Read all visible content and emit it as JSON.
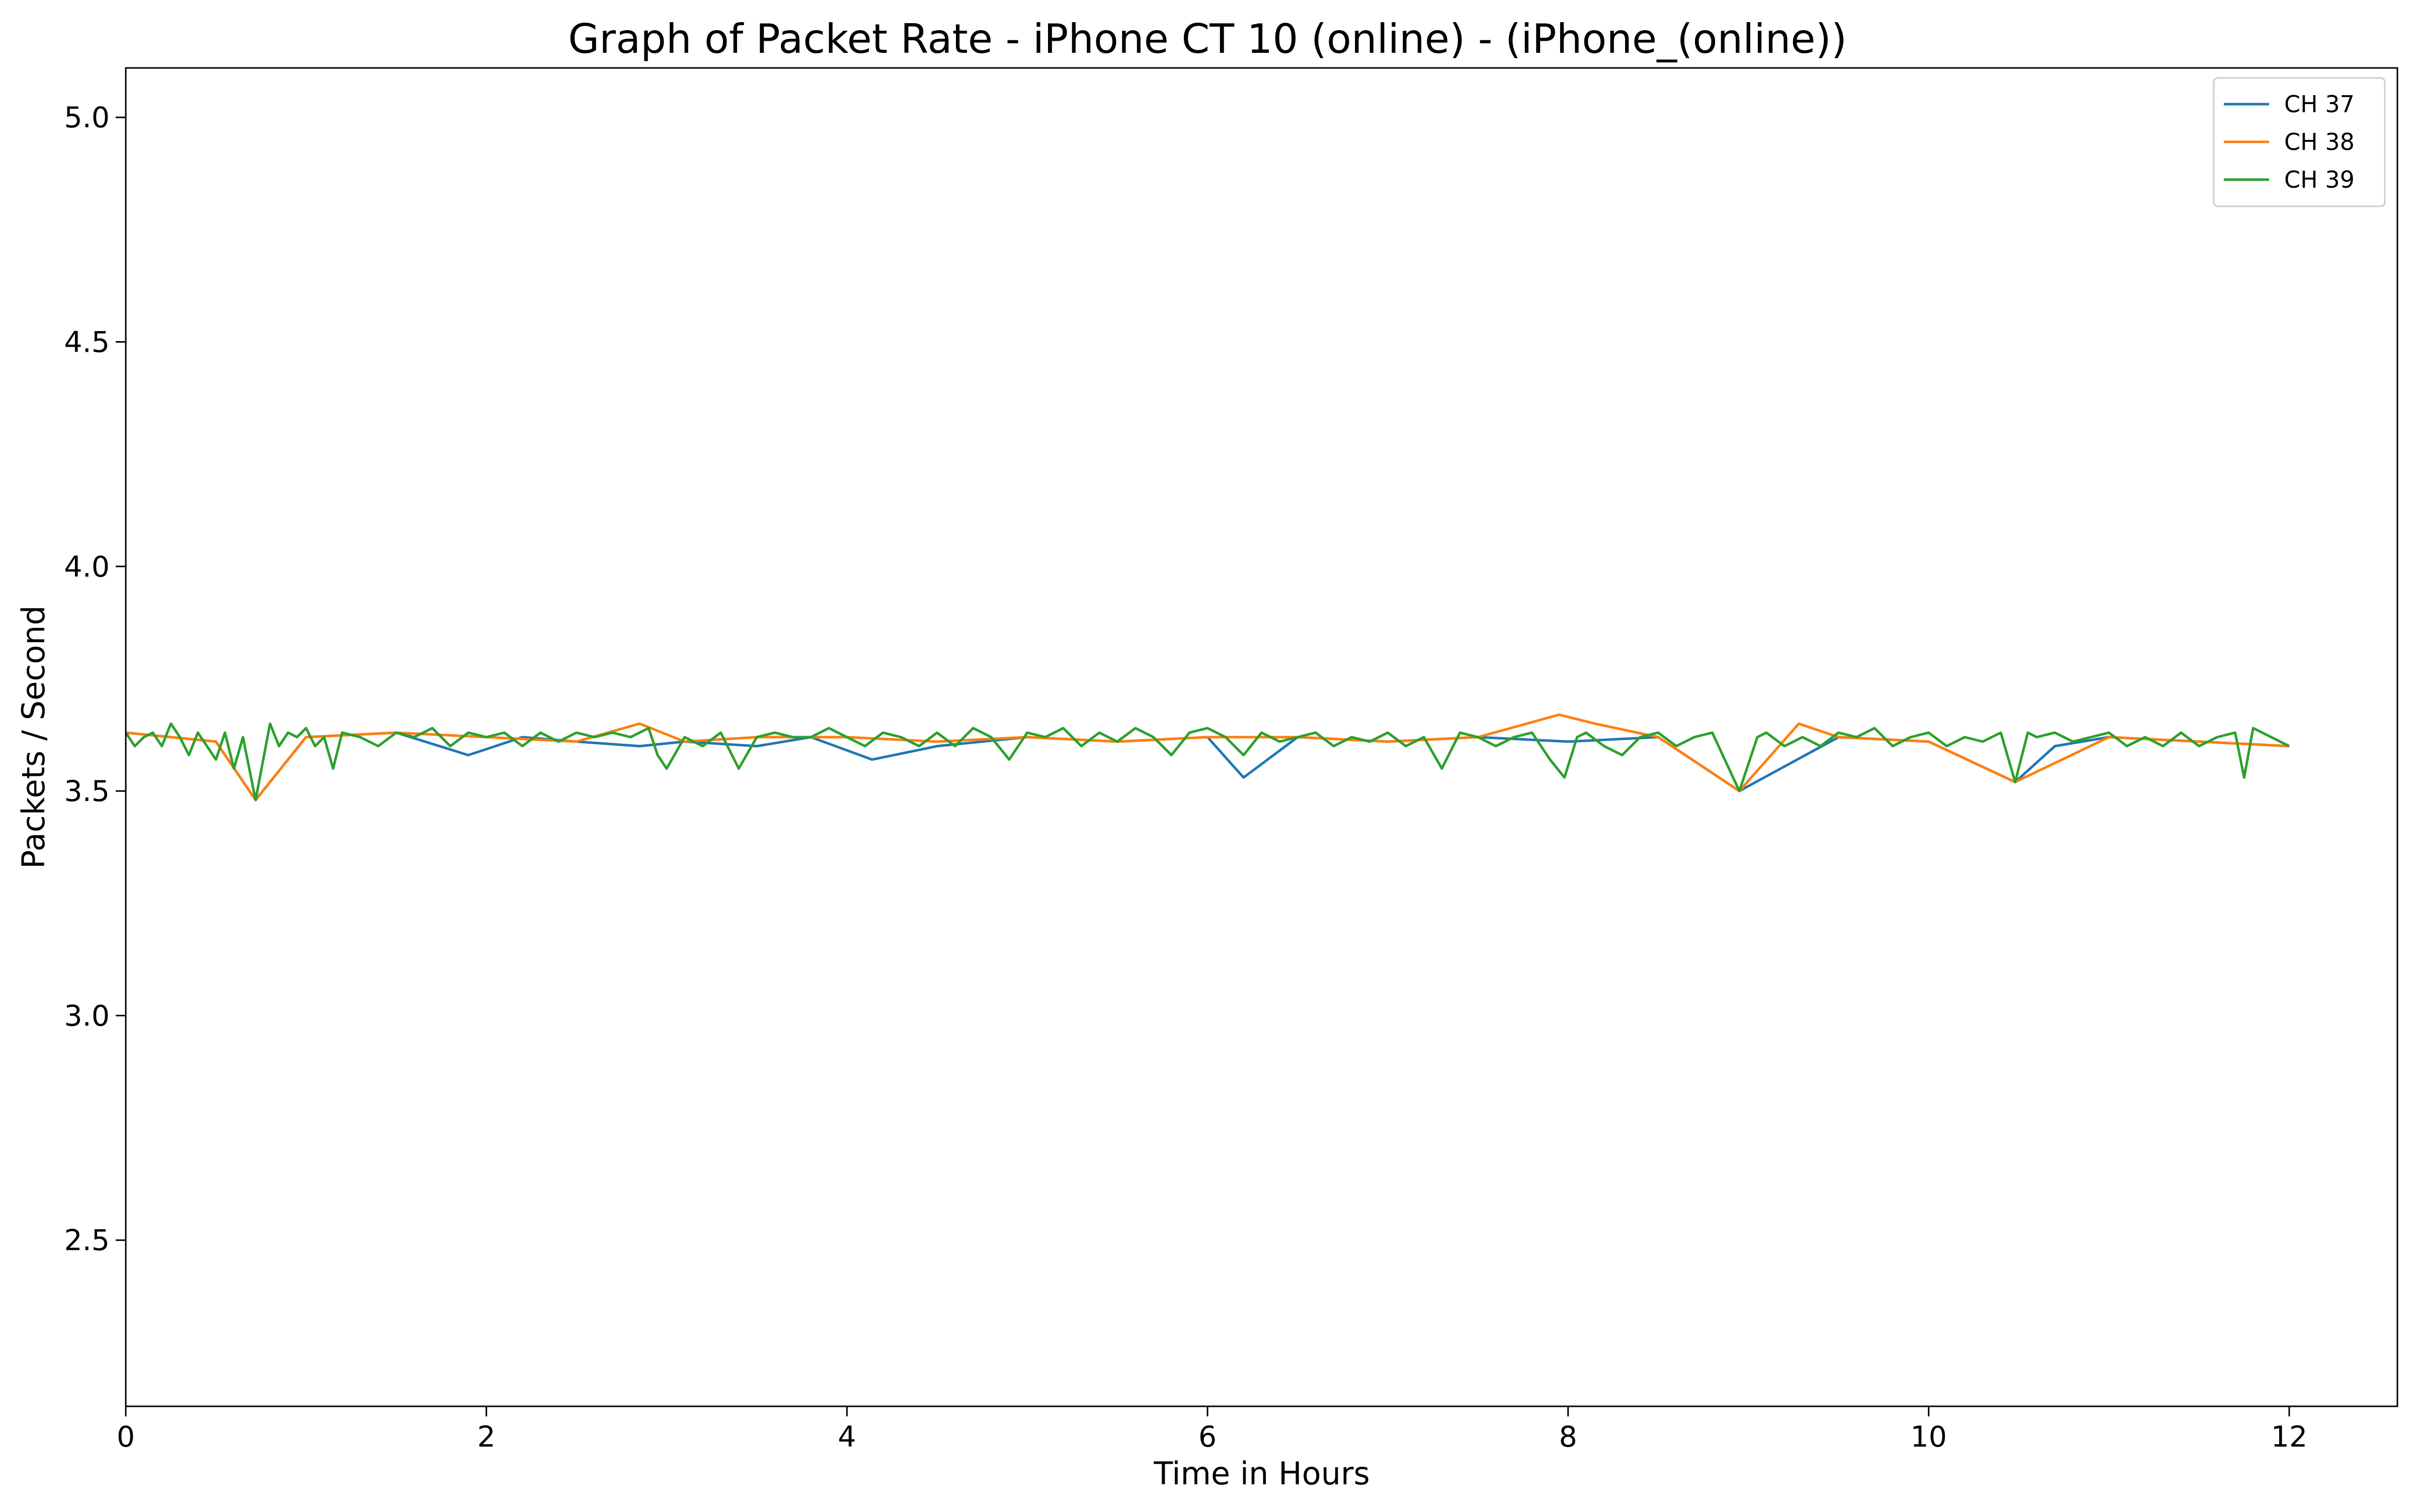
{
  "chart_data": {
    "type": "line",
    "title": "Graph of Packet Rate - iPhone CT 10 (online) - (iPhone_(online))",
    "xlabel": "Time in Hours",
    "ylabel": "Packets / Second",
    "xlim": [
      0,
      12.6
    ],
    "ylim": [
      2.13,
      5.11
    ],
    "x_ticks": [
      0,
      2,
      4,
      6,
      8,
      10,
      12
    ],
    "x_tick_labels": [
      "0",
      "2",
      "4",
      "6",
      "8",
      "10",
      "12"
    ],
    "y_ticks": [
      2.5,
      3.0,
      3.5,
      4.0,
      4.5,
      5.0
    ],
    "y_tick_labels": [
      "2.5",
      "3.0",
      "3.5",
      "4.0",
      "4.5",
      "5.0"
    ],
    "grid": false,
    "legend_position": "top-right",
    "colors": {
      "CH 37": "#1f77b4",
      "CH 38": "#ff7f0e",
      "CH 39": "#2ca02c"
    },
    "series": [
      {
        "name": "CH 37",
        "x": [
          0,
          0.25,
          0.5,
          0.72,
          1.0,
          1.5,
          1.9,
          2.2,
          2.5,
          2.85,
          3.1,
          3.5,
          3.8,
          4.14,
          4.5,
          5.0,
          5.5,
          6.0,
          6.2,
          6.5,
          7.0,
          7.5,
          8.0,
          8.5,
          8.95,
          9.5,
          10.0,
          10.48,
          10.7,
          11.0,
          11.5,
          12.0
        ],
        "y": [
          3.63,
          3.62,
          3.61,
          3.48,
          3.62,
          3.63,
          3.58,
          3.62,
          3.61,
          3.6,
          3.61,
          3.6,
          3.62,
          3.57,
          3.6,
          3.62,
          3.61,
          3.62,
          3.53,
          3.62,
          3.61,
          3.62,
          3.61,
          3.62,
          3.5,
          3.62,
          3.61,
          3.52,
          3.6,
          3.62,
          3.61,
          3.6
        ]
      },
      {
        "name": "CH 38",
        "x": [
          0,
          0.25,
          0.5,
          0.72,
          1.0,
          1.5,
          2.0,
          2.5,
          2.85,
          3.1,
          3.5,
          4.0,
          4.5,
          5.0,
          5.5,
          6.0,
          6.5,
          7.0,
          7.5,
          7.95,
          8.15,
          8.5,
          8.95,
          9.28,
          9.5,
          10.0,
          10.48,
          11.0,
          11.5,
          12.0
        ],
        "y": [
          3.63,
          3.62,
          3.61,
          3.48,
          3.62,
          3.63,
          3.62,
          3.61,
          3.65,
          3.61,
          3.62,
          3.62,
          3.61,
          3.62,
          3.61,
          3.62,
          3.62,
          3.61,
          3.62,
          3.67,
          3.65,
          3.62,
          3.5,
          3.65,
          3.62,
          3.61,
          3.52,
          3.62,
          3.61,
          3.6
        ]
      },
      {
        "name": "CH 39",
        "x": [
          0,
          0.05,
          0.1,
          0.15,
          0.2,
          0.25,
          0.3,
          0.35,
          0.4,
          0.45,
          0.5,
          0.55,
          0.6,
          0.65,
          0.72,
          0.8,
          0.85,
          0.9,
          0.95,
          1.0,
          1.05,
          1.1,
          1.15,
          1.2,
          1.3,
          1.4,
          1.5,
          1.6,
          1.7,
          1.8,
          1.9,
          2.0,
          2.1,
          2.2,
          2.3,
          2.4,
          2.5,
          2.6,
          2.7,
          2.8,
          2.9,
          2.95,
          3.0,
          3.1,
          3.2,
          3.3,
          3.4,
          3.5,
          3.6,
          3.7,
          3.8,
          3.9,
          4.0,
          4.1,
          4.2,
          4.3,
          4.4,
          4.5,
          4.6,
          4.7,
          4.8,
          4.9,
          5.0,
          5.1,
          5.2,
          5.3,
          5.4,
          5.5,
          5.6,
          5.7,
          5.8,
          5.9,
          6.0,
          6.1,
          6.2,
          6.3,
          6.4,
          6.5,
          6.6,
          6.7,
          6.8,
          6.9,
          7.0,
          7.1,
          7.2,
          7.3,
          7.4,
          7.5,
          7.6,
          7.7,
          7.8,
          7.9,
          7.98,
          8.05,
          8.1,
          8.2,
          8.3,
          8.4,
          8.5,
          8.6,
          8.7,
          8.8,
          8.95,
          9.05,
          9.1,
          9.2,
          9.3,
          9.4,
          9.5,
          9.6,
          9.7,
          9.8,
          9.9,
          10.0,
          10.1,
          10.2,
          10.3,
          10.4,
          10.48,
          10.55,
          10.6,
          10.7,
          10.8,
          10.9,
          11.0,
          11.1,
          11.2,
          11.3,
          11.4,
          11.5,
          11.6,
          11.7,
          11.75,
          11.8,
          11.9,
          12.0
        ],
        "y": [
          3.63,
          3.6,
          3.62,
          3.63,
          3.6,
          3.65,
          3.62,
          3.58,
          3.63,
          3.6,
          3.57,
          3.63,
          3.55,
          3.62,
          3.48,
          3.65,
          3.6,
          3.63,
          3.62,
          3.64,
          3.6,
          3.62,
          3.55,
          3.63,
          3.62,
          3.6,
          3.63,
          3.62,
          3.64,
          3.6,
          3.63,
          3.62,
          3.63,
          3.6,
          3.63,
          3.61,
          3.63,
          3.62,
          3.63,
          3.62,
          3.64,
          3.58,
          3.55,
          3.62,
          3.6,
          3.63,
          3.55,
          3.62,
          3.63,
          3.62,
          3.62,
          3.64,
          3.62,
          3.6,
          3.63,
          3.62,
          3.6,
          3.63,
          3.6,
          3.64,
          3.62,
          3.57,
          3.63,
          3.62,
          3.64,
          3.6,
          3.63,
          3.61,
          3.64,
          3.62,
          3.58,
          3.63,
          3.64,
          3.62,
          3.58,
          3.63,
          3.61,
          3.62,
          3.63,
          3.6,
          3.62,
          3.61,
          3.63,
          3.6,
          3.62,
          3.55,
          3.63,
          3.62,
          3.6,
          3.62,
          3.63,
          3.57,
          3.53,
          3.62,
          3.63,
          3.6,
          3.58,
          3.62,
          3.63,
          3.6,
          3.62,
          3.63,
          3.5,
          3.62,
          3.63,
          3.6,
          3.62,
          3.6,
          3.63,
          3.62,
          3.64,
          3.6,
          3.62,
          3.63,
          3.6,
          3.62,
          3.61,
          3.63,
          3.52,
          3.63,
          3.62,
          3.63,
          3.61,
          3.62,
          3.63,
          3.6,
          3.62,
          3.6,
          3.63,
          3.6,
          3.62,
          3.63,
          3.53,
          3.64,
          3.62,
          3.6
        ]
      }
    ]
  }
}
